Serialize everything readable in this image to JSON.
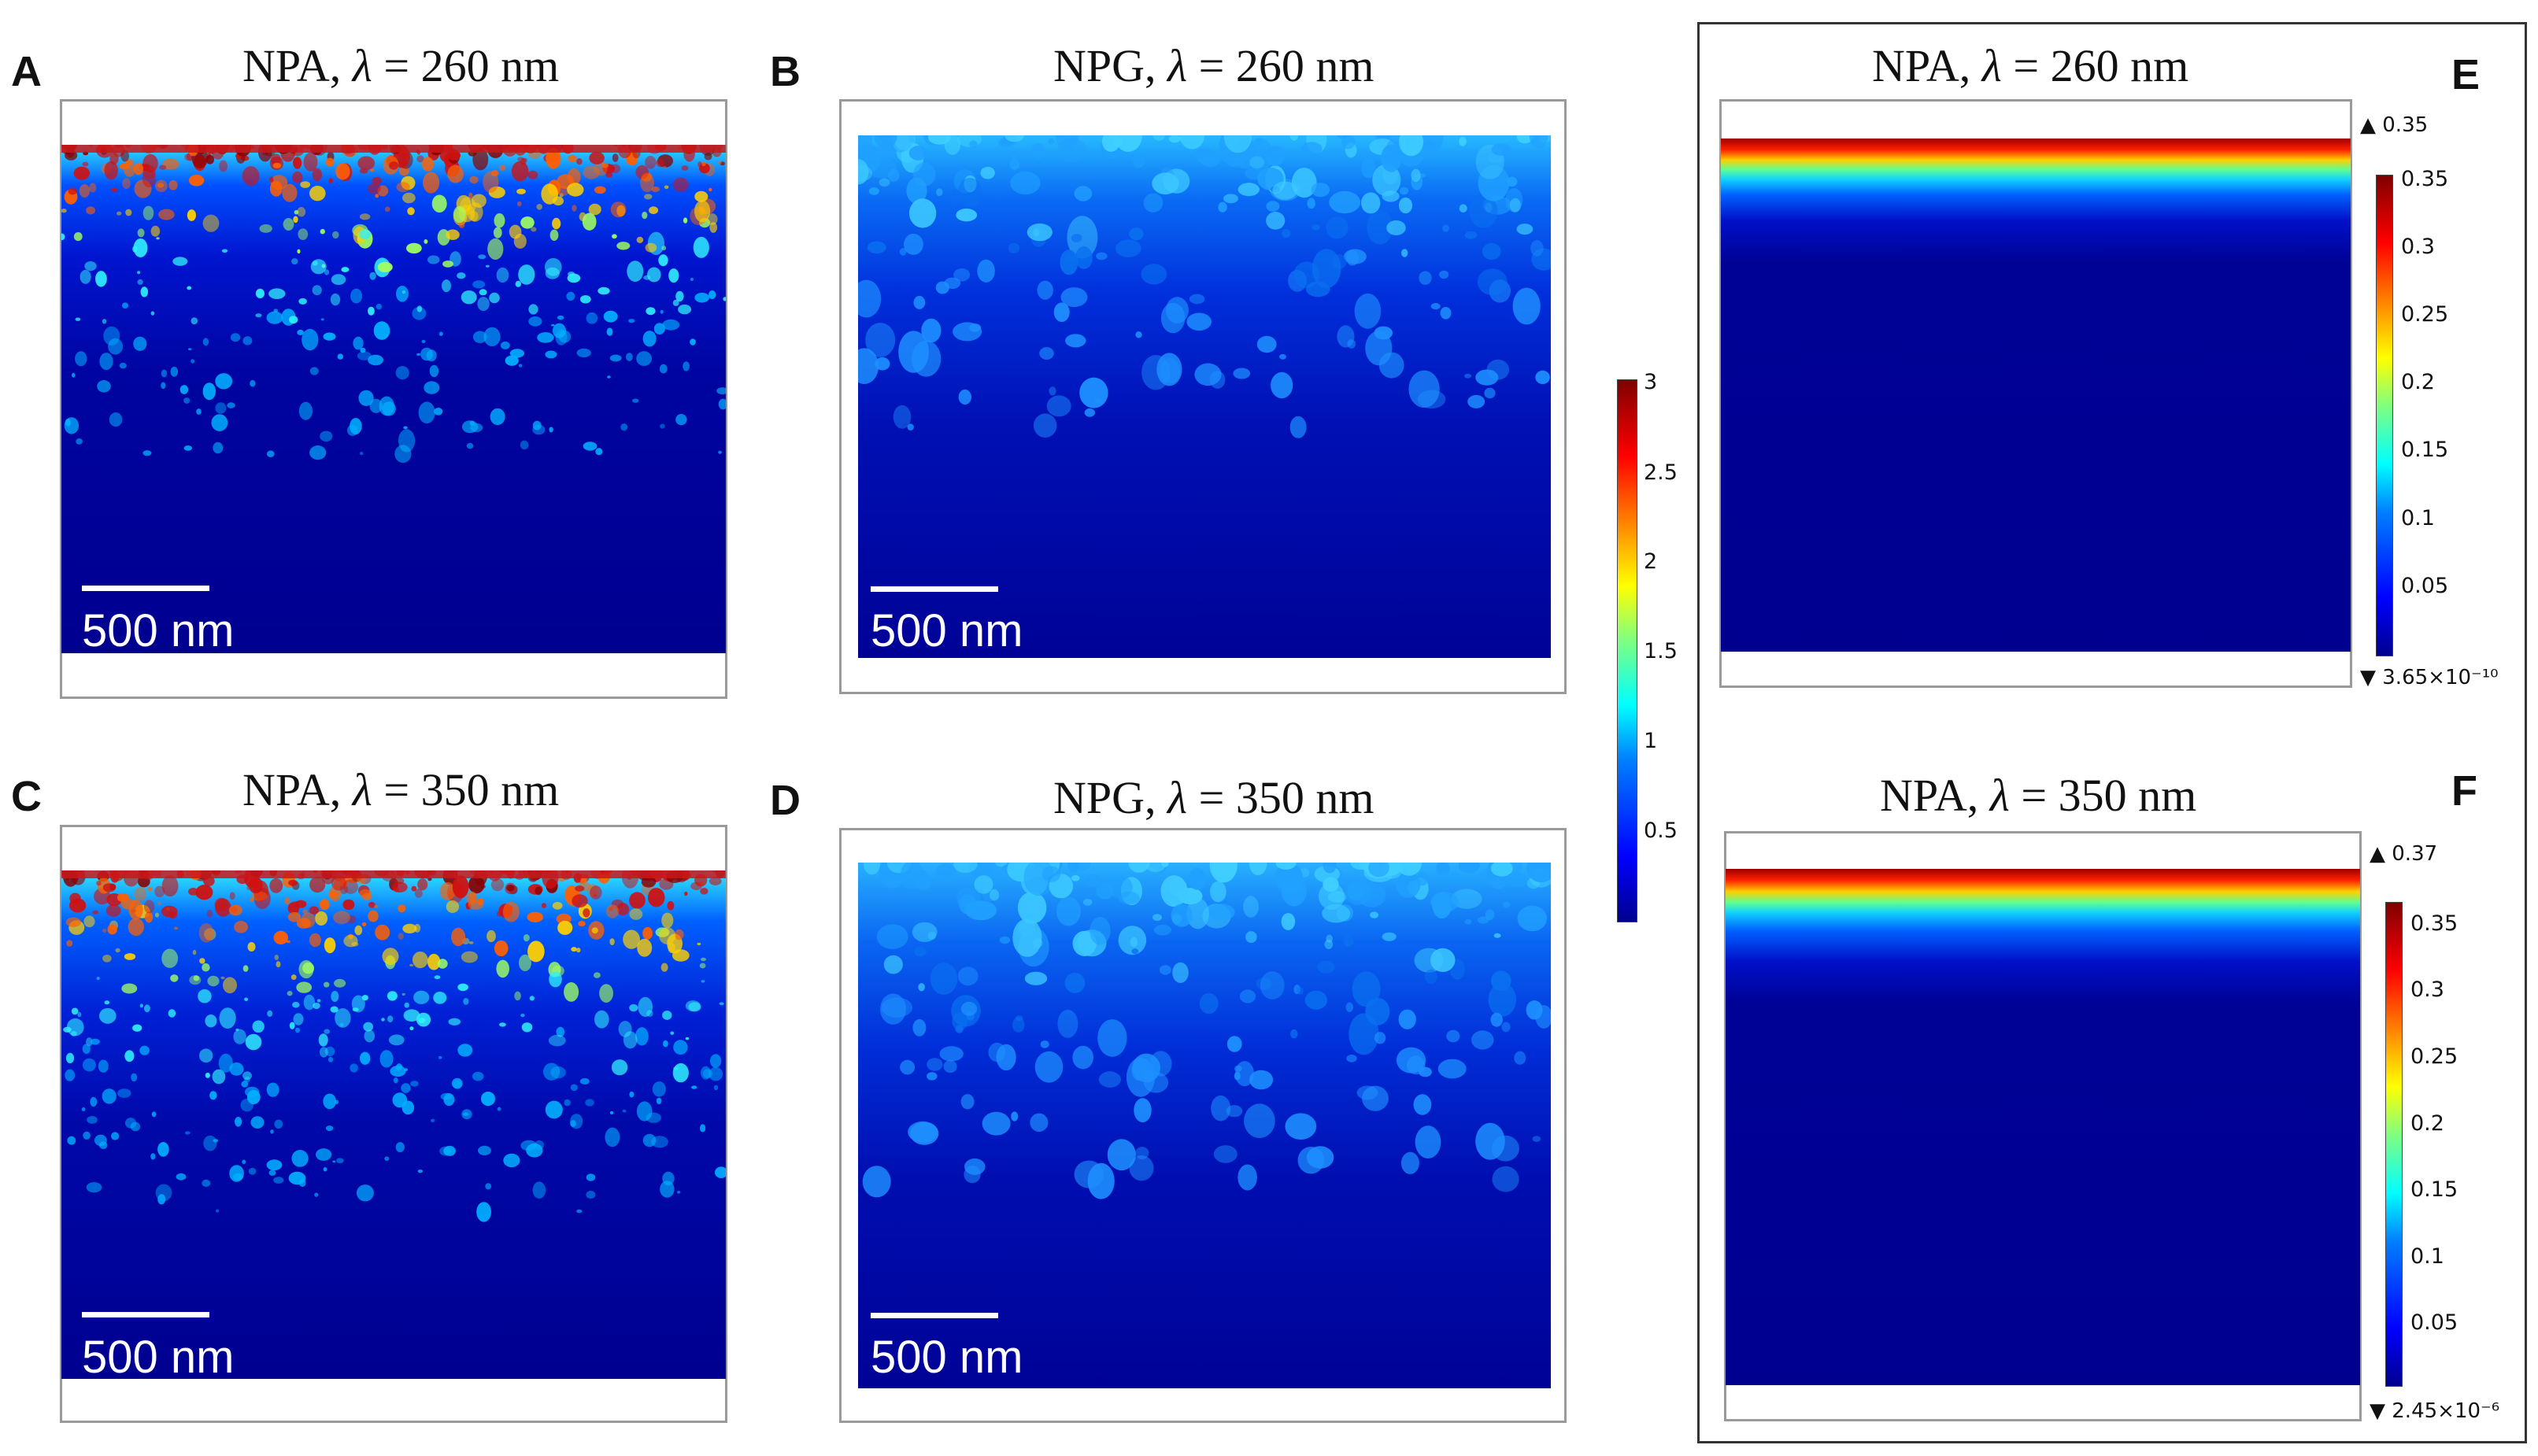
{
  "figure": {
    "panels": [
      {
        "letter": "A",
        "material": "NPA",
        "lambda_symbol": "λ",
        "equals": "=",
        "wavelength": "260 nm",
        "scale_bar": "500 nm"
      },
      {
        "letter": "B",
        "material": "NPG",
        "lambda_symbol": "λ",
        "equals": "=",
        "wavelength": "260 nm",
        "scale_bar": "500 nm"
      },
      {
        "letter": "C",
        "material": "NPA",
        "lambda_symbol": "λ",
        "equals": "=",
        "wavelength": "350 nm",
        "scale_bar": "500 nm"
      },
      {
        "letter": "D",
        "material": "NPG",
        "lambda_symbol": "λ",
        "equals": "=",
        "wavelength": "350 nm",
        "scale_bar": "500 nm"
      },
      {
        "letter": "E",
        "material": "NPA",
        "lambda_symbol": "λ",
        "equals": "=",
        "wavelength": "260 nm"
      },
      {
        "letter": "F",
        "material": "NPA",
        "lambda_symbol": "λ",
        "equals": "=",
        "wavelength": "350 nm"
      }
    ],
    "shared_colorbar": {
      "ticks": [
        "3",
        "2.5",
        "2",
        "1.5",
        "1",
        "0.5"
      ]
    },
    "colorbar_E": {
      "max": "0.35",
      "min": "3.65×10⁻¹⁰",
      "ticks": [
        "0.35",
        "0.3",
        "0.25",
        "0.2",
        "0.15",
        "0.1",
        "0.05"
      ]
    },
    "colorbar_F": {
      "max": "0.37",
      "min": "2.45×10⁻⁶",
      "ticks": [
        "0.35",
        "0.3",
        "0.25",
        "0.2",
        "0.15",
        "0.1",
        "0.05"
      ]
    }
  },
  "colors": {
    "jet_dark_blue": "#00008f",
    "jet_dark_red": "#800000",
    "frame_gray": "#9a9a9a"
  }
}
